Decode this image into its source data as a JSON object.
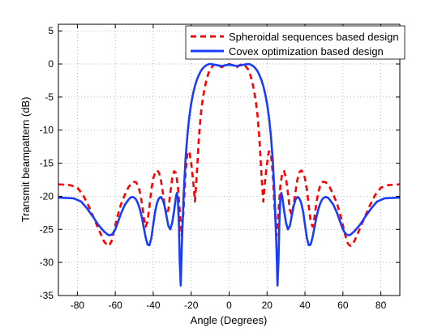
{
  "chart_data": {
    "type": "line",
    "xlabel": "Angle (Degrees)",
    "ylabel": "Transmit beampattern (dB)",
    "xlim": [
      -90,
      90
    ],
    "ylim": [
      -35,
      6
    ],
    "xticks": [
      -80,
      -60,
      -40,
      -20,
      0,
      20,
      40,
      60,
      80
    ],
    "yticks": [
      5,
      0,
      -5,
      -10,
      -15,
      -20,
      -25,
      -30,
      -35
    ],
    "grid": true,
    "legend_position": "top-right",
    "series": [
      {
        "name": "Spheroidal sequences based design",
        "color": "#ff0000",
        "style": "dashed",
        "x": [
          -90,
          -84,
          -80,
          -77,
          -74,
          -71,
          -68,
          -66,
          -64,
          -63,
          -62,
          -61,
          -59,
          -57,
          -55,
          -53,
          -51,
          -50,
          -49,
          -48,
          -47,
          -46,
          -45,
          -44,
          -43,
          -42,
          -41,
          -40,
          -39,
          -38,
          -37,
          -36,
          -35,
          -34,
          -33,
          -32,
          -31,
          -30,
          -29,
          -28,
          -27,
          -26,
          -25,
          -24,
          -23,
          -22,
          -21,
          -20,
          -19,
          -18,
          -17,
          -16,
          -15,
          -14,
          -13,
          -12,
          -11,
          -10,
          -8,
          -6,
          -4,
          -2,
          0,
          2,
          4,
          6,
          8,
          10,
          11,
          12,
          13,
          14,
          15,
          16,
          17,
          18,
          19,
          20,
          21,
          22,
          23,
          24,
          25,
          26,
          27,
          28,
          29,
          30,
          31,
          32,
          33,
          34,
          35,
          36,
          37,
          38,
          39,
          40,
          41,
          42,
          43,
          44,
          45,
          46,
          47,
          48,
          49,
          50,
          51,
          53,
          55,
          57,
          59,
          61,
          62,
          63,
          64,
          66,
          68,
          71,
          74,
          77,
          80,
          84,
          90
        ],
        "y": [
          -18.2,
          -18.3,
          -18.7,
          -19.8,
          -21.5,
          -23.5,
          -25.5,
          -26.8,
          -27.5,
          -27.3,
          -26.8,
          -25.6,
          -23.2,
          -21.2,
          -19.8,
          -18.6,
          -17.9,
          -17.8,
          -17.9,
          -18.4,
          -19.4,
          -21.0,
          -23.2,
          -24.6,
          -23.8,
          -21.5,
          -19.0,
          -17.3,
          -16.4,
          -16.1,
          -16.4,
          -17.5,
          -19.3,
          -21.3,
          -22.8,
          -22.0,
          -19.5,
          -17.3,
          -16.2,
          -16.5,
          -18.5,
          -22.3,
          -26.0,
          -22.0,
          -16.5,
          -13.5,
          -13.2,
          -15.0,
          -17.5,
          -20.8,
          -16.5,
          -11.5,
          -7.8,
          -5.5,
          -3.8,
          -2.5,
          -1.5,
          -0.8,
          -0.1,
          -0.1,
          -0.5,
          -0.2,
          0,
          -0.2,
          -0.5,
          -0.1,
          -0.1,
          -0.8,
          -1.5,
          -2.5,
          -3.8,
          -5.5,
          -7.8,
          -11.5,
          -16.5,
          -20.8,
          -17.5,
          -15.0,
          -13.2,
          -13.5,
          -16.5,
          -22.0,
          -26.0,
          -22.3,
          -18.5,
          -16.5,
          -16.2,
          -17.3,
          -19.5,
          -22.0,
          -22.8,
          -21.3,
          -19.3,
          -17.5,
          -16.4,
          -16.1,
          -16.4,
          -17.3,
          -19.0,
          -21.5,
          -23.8,
          -24.6,
          -23.2,
          -21.0,
          -19.4,
          -18.4,
          -17.9,
          -17.8,
          -17.9,
          -18.6,
          -19.8,
          -21.2,
          -23.2,
          -25.6,
          -26.8,
          -27.3,
          -27.5,
          -26.8,
          -25.5,
          -23.5,
          -21.5,
          -19.8,
          -18.7,
          -18.3,
          -18.2
        ]
      },
      {
        "name": "Covex optimization based design",
        "color": "#1a3cff",
        "style": "solid",
        "x": [
          -90,
          -82,
          -78,
          -75,
          -72,
          -69,
          -66,
          -64,
          -63,
          -62,
          -61,
          -60,
          -59,
          -57,
          -55,
          -53,
          -52,
          -51,
          -50,
          -49,
          -48,
          -47,
          -46,
          -45,
          -44,
          -43,
          -42,
          -41,
          -40,
          -39,
          -38,
          -37,
          -36,
          -35,
          -34,
          -33,
          -32,
          -31,
          -30,
          -29,
          -28,
          -27.5,
          -27,
          -26.5,
          -26,
          -25.5,
          -25,
          -24,
          -23,
          -22,
          -21,
          -20,
          -19,
          -18,
          -17,
          -16,
          -15,
          -14,
          -13,
          -12,
          -11,
          -10,
          -9,
          -8,
          -6,
          -4,
          -2,
          0,
          2,
          4,
          6,
          8,
          9,
          10,
          11,
          12,
          13,
          14,
          15,
          16,
          17,
          18,
          19,
          20,
          21,
          22,
          23,
          24,
          25,
          25.5,
          26,
          26.5,
          27,
          27.5,
          28,
          29,
          30,
          31,
          32,
          33,
          34,
          35,
          36,
          37,
          38,
          39,
          40,
          41,
          42,
          43,
          44,
          45,
          46,
          47,
          48,
          49,
          50,
          51,
          52,
          53,
          55,
          57,
          59,
          60,
          61,
          62,
          63,
          64,
          66,
          69,
          72,
          75,
          78,
          82,
          90
        ],
        "y": [
          -20.2,
          -20.3,
          -20.8,
          -21.8,
          -23.0,
          -24.3,
          -25.3,
          -25.8,
          -25.9,
          -25.8,
          -25.5,
          -25.0,
          -24.2,
          -22.6,
          -21.3,
          -20.5,
          -20.2,
          -20.1,
          -20.2,
          -20.5,
          -21.1,
          -22.0,
          -23.2,
          -24.7,
          -26.2,
          -27.3,
          -27.4,
          -26.3,
          -24.3,
          -22.3,
          -21.0,
          -20.3,
          -20.1,
          -20.5,
          -21.5,
          -23.0,
          -24.5,
          -25.0,
          -24.0,
          -22.2,
          -20.0,
          -19.5,
          -20.5,
          -24.0,
          -30.0,
          -33.5,
          -28.0,
          -20.0,
          -14.5,
          -10.8,
          -8.0,
          -6.0,
          -4.5,
          -3.3,
          -2.4,
          -1.7,
          -1.1,
          -0.7,
          -0.4,
          -0.2,
          -0.05,
          0,
          -0.05,
          -0.1,
          -0.2,
          -0.3,
          -0.2,
          -0.1,
          -0.2,
          -0.3,
          -0.2,
          -0.1,
          -0.05,
          0,
          -0.05,
          -0.2,
          -0.4,
          -0.7,
          -1.1,
          -1.7,
          -2.4,
          -3.3,
          -4.5,
          -6.0,
          -8.0,
          -10.8,
          -14.5,
          -20.0,
          -28.0,
          -33.5,
          -30.0,
          -24.0,
          -20.5,
          -19.5,
          -20.0,
          -22.2,
          -24.0,
          -25.0,
          -24.5,
          -23.0,
          -21.5,
          -20.5,
          -20.1,
          -20.3,
          -21.0,
          -22.3,
          -24.3,
          -26.3,
          -27.4,
          -27.3,
          -26.2,
          -24.7,
          -23.2,
          -22.0,
          -21.1,
          -20.5,
          -20.2,
          -20.1,
          -20.2,
          -20.5,
          -21.3,
          -22.6,
          -24.2,
          -25.0,
          -25.5,
          -25.8,
          -25.9,
          -25.8,
          -25.3,
          -24.3,
          -23.0,
          -21.8,
          -20.8,
          -20.3,
          -20.2
        ]
      }
    ]
  }
}
